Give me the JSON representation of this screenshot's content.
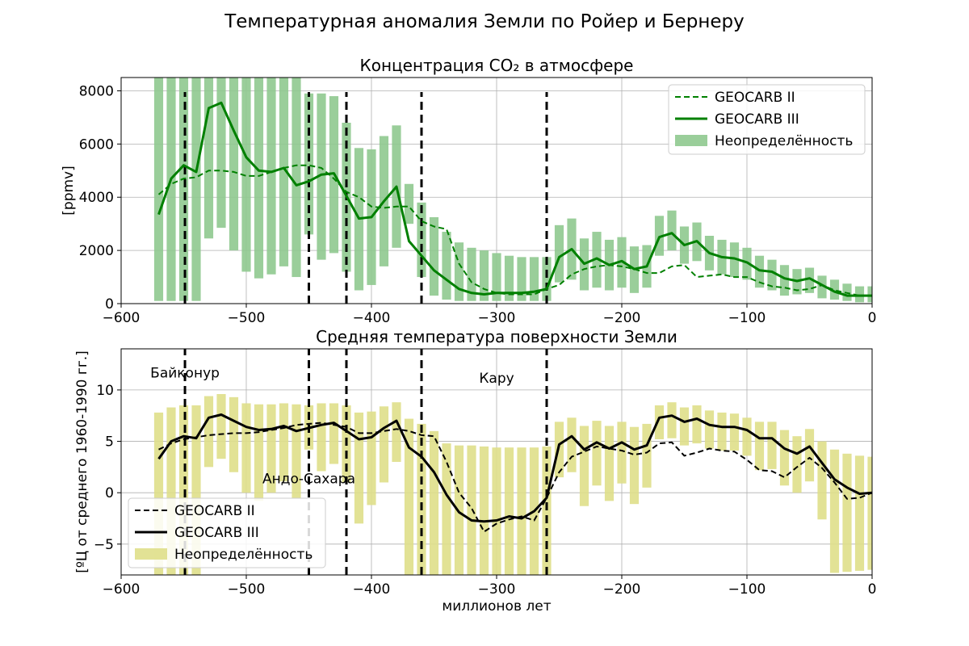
{
  "suptitle": "Температурная аномалия Земли по Ройер и Бернеру",
  "colors": {
    "co2_line": "#008000",
    "co2_band": "#8fc98f",
    "temp_line": "#000000",
    "temp_band": "#dfdf8a",
    "event": "#000000",
    "grid": "#b0b0b0"
  },
  "events": [
    -549,
    -450,
    -420,
    -360,
    -260
  ],
  "chart_data": [
    {
      "type": "line",
      "title": "Концентрация CO₂ в атмосфере",
      "xlabel": "",
      "ylabel": "[ppmv]",
      "xlim": [
        -600,
        0
      ],
      "ylim": [
        0,
        8500
      ],
      "xticks": [
        -600,
        -500,
        -400,
        -300,
        -200,
        -100,
        0
      ],
      "xtick_labels": [
        "−600",
        "−500",
        "−400",
        "−300",
        "−200",
        "−100",
        "0"
      ],
      "yticks": [
        0,
        2000,
        4000,
        6000,
        8000
      ],
      "ytick_labels": [
        "0",
        "2000",
        "4000",
        "6000",
        "8000"
      ],
      "grid": true,
      "legend_position": "top-right",
      "legend": [
        "GEOCARB II",
        "GEOCARB III",
        "Неопределённость"
      ],
      "x": [
        -570,
        -560,
        -550,
        -540,
        -530,
        -520,
        -510,
        -500,
        -490,
        -480,
        -470,
        -460,
        -450,
        -440,
        -430,
        -420,
        -410,
        -400,
        -390,
        -380,
        -370,
        -360,
        -350,
        -340,
        -330,
        -320,
        -310,
        -300,
        -290,
        -280,
        -270,
        -260,
        -250,
        -240,
        -230,
        -220,
        -210,
        -200,
        -190,
        -180,
        -170,
        -160,
        -150,
        -140,
        -130,
        -120,
        -110,
        -100,
        -90,
        -80,
        -70,
        -60,
        -50,
        -40,
        -30,
        -20,
        -10,
        0
      ],
      "series": [
        {
          "name": "GEOCARB II",
          "style": "dashed",
          "values": [
            4100,
            4500,
            4700,
            4750,
            5000,
            5000,
            4950,
            4800,
            4800,
            4950,
            5100,
            5200,
            5200,
            5100,
            4700,
            4200,
            4000,
            3650,
            3600,
            3650,
            3650,
            3100,
            2900,
            2800,
            1500,
            800,
            550,
            400,
            350,
            350,
            350,
            550,
            700,
            1100,
            1300,
            1400,
            1450,
            1400,
            1300,
            1150,
            1150,
            1400,
            1450,
            1000,
            1050,
            1100,
            1000,
            1000,
            800,
            650,
            600,
            500,
            550,
            700,
            500,
            400,
            300,
            300
          ]
        },
        {
          "name": "GEOCARB III",
          "style": "solid",
          "values": [
            3350,
            4700,
            5200,
            4950,
            7350,
            7550,
            6500,
            5500,
            5000,
            4950,
            5100,
            4450,
            4600,
            4850,
            4900,
            4050,
            3200,
            3250,
            3850,
            4400,
            2350,
            1800,
            1250,
            900,
            550,
            400,
            350,
            400,
            400,
            400,
            450,
            550,
            1750,
            2050,
            1500,
            1700,
            1450,
            1600,
            1300,
            1400,
            2500,
            2650,
            2200,
            2350,
            1900,
            1750,
            1700,
            1550,
            1250,
            1200,
            950,
            850,
            950,
            700,
            450,
            300,
            300,
            300
          ]
        }
      ],
      "uncertainty": {
        "name": "Неопределённость",
        "x": [
          -570,
          -560,
          -550,
          -540,
          -530,
          -520,
          -510,
          -500,
          -490,
          -480,
          -470,
          -460,
          -450,
          -440,
          -430,
          -420,
          -410,
          -400,
          -390,
          -380,
          -370,
          -360,
          -350,
          -340,
          -330,
          -320,
          -310,
          -300,
          -290,
          -280,
          -270,
          -260,
          -250,
          -240,
          -230,
          -220,
          -210,
          -200,
          -190,
          -180,
          -170,
          -160,
          -150,
          -140,
          -130,
          -120,
          -110,
          -100,
          -90,
          -80,
          -70,
          -60,
          -50,
          -40,
          -30,
          -20,
          -10,
          0
        ],
        "low": [
          100,
          100,
          100,
          100,
          2450,
          2850,
          2000,
          1200,
          950,
          1100,
          1400,
          1000,
          2600,
          1650,
          1900,
          1200,
          500,
          700,
          1400,
          2100,
          3000,
          1000,
          300,
          150,
          100,
          100,
          100,
          100,
          100,
          100,
          100,
          100,
          800,
          900,
          500,
          600,
          500,
          600,
          400,
          600,
          1800,
          2000,
          1500,
          1600,
          1250,
          1100,
          1000,
          900,
          600,
          500,
          300,
          350,
          400,
          200,
          150,
          100,
          50,
          50
        ],
        "high": [
          8500,
          8500,
          8500,
          8500,
          8500,
          8500,
          8500,
          8500,
          8500,
          8500,
          8500,
          8500,
          7900,
          7900,
          7800,
          6800,
          5850,
          5800,
          6300,
          6700,
          4500,
          3800,
          3250,
          2700,
          2300,
          2100,
          2000,
          1900,
          1800,
          1750,
          1750,
          1750,
          2950,
          3200,
          2450,
          2700,
          2400,
          2500,
          2150,
          2200,
          3300,
          3500,
          2900,
          3050,
          2550,
          2400,
          2300,
          2100,
          1800,
          1650,
          1450,
          1300,
          1350,
          1050,
          900,
          750,
          650,
          650
        ]
      }
    },
    {
      "type": "line",
      "title": "Средняя температура поверхности Земли",
      "xlabel": "миллионов лет",
      "ylabel": "[ºЦ от среднего 1960-1990 гг.]",
      "xlim": [
        -600,
        0
      ],
      "ylim": [
        -8,
        14
      ],
      "xticks": [
        -600,
        -500,
        -400,
        -300,
        -200,
        -100,
        0
      ],
      "xtick_labels": [
        "−600",
        "−500",
        "−400",
        "−300",
        "−200",
        "−100",
        "0"
      ],
      "yticks": [
        -5,
        0,
        5,
        10
      ],
      "ytick_labels": [
        "−5",
        "0",
        "5",
        "10"
      ],
      "grid": true,
      "legend_position": "bottom-left",
      "legend": [
        "GEOCARB II",
        "GEOCARB III",
        "Неопределённость"
      ],
      "annotations": [
        {
          "text": "Байконур",
          "x": -549,
          "y": 11.2
        },
        {
          "text": "Андо-Сахара",
          "x": -450,
          "y": 0.9
        },
        {
          "text": "Кару",
          "x": -300,
          "y": 10.7
        }
      ],
      "x": [
        -570,
        -560,
        -550,
        -540,
        -530,
        -520,
        -510,
        -500,
        -490,
        -480,
        -470,
        -460,
        -450,
        -440,
        -430,
        -420,
        -410,
        -400,
        -390,
        -380,
        -370,
        -360,
        -350,
        -340,
        -330,
        -320,
        -310,
        -300,
        -290,
        -280,
        -270,
        -260,
        -250,
        -240,
        -230,
        -220,
        -210,
        -200,
        -190,
        -180,
        -170,
        -160,
        -150,
        -140,
        -130,
        -120,
        -110,
        -100,
        -90,
        -80,
        -70,
        -60,
        -50,
        -40,
        -30,
        -20,
        -10,
        0
      ],
      "series": [
        {
          "name": "GEOCARB II",
          "style": "dashed",
          "values": [
            4.2,
            4.8,
            5.2,
            5.4,
            5.6,
            5.7,
            5.8,
            5.8,
            5.9,
            6.1,
            6.3,
            6.6,
            6.7,
            6.8,
            6.6,
            6.4,
            5.8,
            5.8,
            6.0,
            6.2,
            6.0,
            5.6,
            5.5,
            3.0,
            0.0,
            -1.5,
            -3.8,
            -3.0,
            -2.6,
            -2.3,
            -2.7,
            -0.5,
            2.0,
            3.5,
            4.0,
            4.5,
            4.3,
            4.1,
            3.7,
            3.9,
            4.8,
            4.9,
            3.6,
            3.9,
            4.3,
            4.1,
            4.0,
            3.2,
            2.2,
            2.1,
            1.5,
            2.5,
            3.4,
            2.4,
            1.0,
            -0.6,
            -0.5,
            0.0
          ]
        },
        {
          "name": "GEOCARB III",
          "style": "solid",
          "values": [
            3.3,
            5.0,
            5.5,
            5.3,
            7.3,
            7.6,
            7.0,
            6.4,
            6.1,
            6.2,
            6.5,
            6.0,
            6.3,
            6.6,
            6.8,
            6.0,
            5.2,
            5.4,
            6.3,
            7.0,
            4.4,
            3.5,
            2.0,
            -0.2,
            -1.9,
            -2.7,
            -2.8,
            -2.7,
            -2.3,
            -2.5,
            -1.8,
            -0.5,
            4.7,
            5.5,
            4.2,
            4.9,
            4.3,
            4.9,
            4.2,
            4.6,
            7.3,
            7.5,
            6.9,
            7.2,
            6.6,
            6.4,
            6.4,
            6.1,
            5.3,
            5.3,
            4.3,
            3.8,
            4.5,
            2.9,
            1.3,
            0.5,
            -0.1,
            0.0
          ]
        }
      ],
      "uncertainty": {
        "name": "Неопределённость",
        "x": [
          -570,
          -560,
          -550,
          -540,
          -530,
          -520,
          -510,
          -500,
          -490,
          -480,
          -470,
          -460,
          -450,
          -440,
          -430,
          -420,
          -410,
          -400,
          -390,
          -380,
          -370,
          -360,
          -350,
          -340,
          -330,
          -320,
          -310,
          -300,
          -290,
          -280,
          -270,
          -260,
          -250,
          -240,
          -230,
          -220,
          -210,
          -200,
          -190,
          -180,
          -170,
          -160,
          -150,
          -140,
          -130,
          -120,
          -110,
          -100,
          -90,
          -80,
          -70,
          -60,
          -50,
          -40,
          -30,
          -20,
          -10,
          0
        ],
        "low": [
          -8.0,
          -8.0,
          -8.0,
          -8.0,
          2.5,
          3.3,
          2.0,
          0.0,
          -0.8,
          0.0,
          1.1,
          -0.5,
          4.2,
          2.1,
          2.8,
          1.0,
          -3.0,
          -1.2,
          1.0,
          3.0,
          -8.0,
          -8.0,
          -8.0,
          -8.0,
          -8.0,
          -8.0,
          -8.0,
          -8.0,
          -8.0,
          -8.0,
          -8.0,
          -8.0,
          1.5,
          2.0,
          -1.3,
          0.7,
          -0.8,
          0.9,
          -1.1,
          0.5,
          5.2,
          5.3,
          4.6,
          4.8,
          4.3,
          4.1,
          4.1,
          3.6,
          2.2,
          2.3,
          0.7,
          0.0,
          1.1,
          -2.6,
          -7.8,
          -7.7,
          -7.6,
          -7.5
        ],
        "high": [
          7.8,
          8.3,
          8.5,
          8.5,
          9.4,
          9.6,
          9.3,
          8.7,
          8.6,
          8.6,
          8.7,
          8.6,
          8.5,
          8.7,
          8.7,
          8.5,
          7.8,
          7.9,
          8.4,
          8.8,
          7.2,
          6.7,
          6.0,
          4.8,
          4.6,
          4.6,
          4.5,
          4.4,
          4.4,
          4.4,
          4.4,
          4.5,
          6.9,
          7.3,
          6.5,
          7.0,
          6.5,
          6.9,
          6.4,
          6.7,
          8.5,
          8.8,
          8.3,
          8.5,
          8.0,
          7.8,
          7.7,
          7.3,
          6.9,
          6.9,
          6.1,
          5.5,
          6.2,
          5.0,
          4.2,
          3.8,
          3.6,
          3.5
        ]
      }
    }
  ]
}
